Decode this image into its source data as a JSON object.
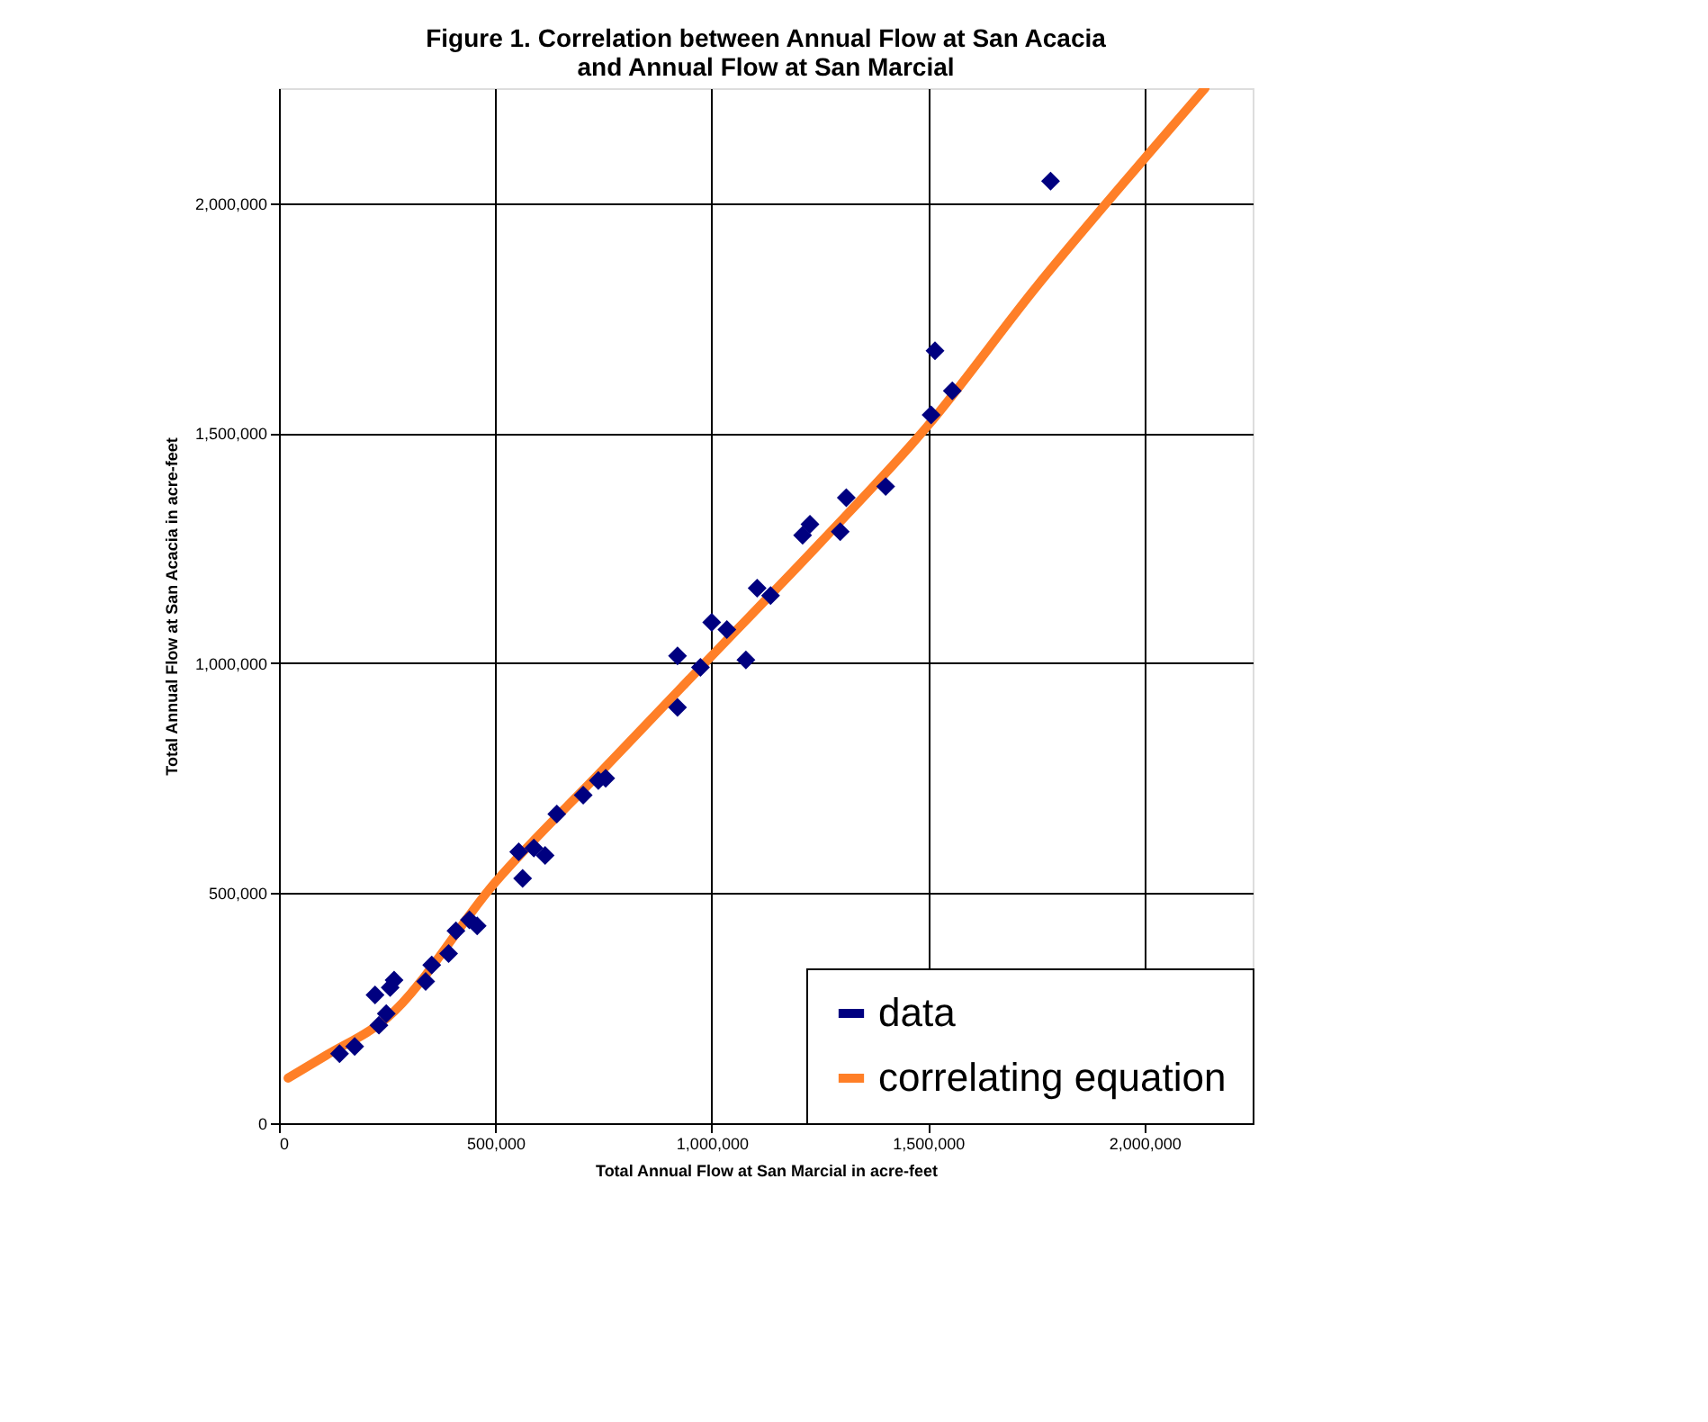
{
  "chart_data": {
    "type": "scatter",
    "title": "Figure 1.  Correlation between Annual Flow at San Acacia\nand Annual Flow at San Marcial",
    "xlabel": "Total Annual Flow at San Marcial in acre-feet",
    "ylabel": "Total Annual Flow at San Acacia in acre-feet",
    "xlim": [
      0,
      2250000
    ],
    "ylim": [
      0,
      2250000
    ],
    "xticks": [
      {
        "value": 0,
        "label": "0"
      },
      {
        "value": 500000,
        "label": "500,000"
      },
      {
        "value": 1000000,
        "label": "1,000,000"
      },
      {
        "value": 1500000,
        "label": "1,500,000"
      },
      {
        "value": 2000000,
        "label": "2,000,000"
      }
    ],
    "yticks": [
      {
        "value": 0,
        "label": "0"
      },
      {
        "value": 500000,
        "label": "500,000"
      },
      {
        "value": 1000000,
        "label": "1,000,000"
      },
      {
        "value": 1500000,
        "label": "1,500,000"
      },
      {
        "value": 2000000,
        "label": "2,000,000"
      }
    ],
    "grid": true,
    "legend": "bottom right",
    "series": [
      {
        "name": "data",
        "marker": "diamond",
        "color": "#000080",
        "x": [
          140000,
          175000,
          231000,
          222000,
          257000,
          248000,
          266000,
          339000,
          353000,
          392000,
          409000,
          440000,
          458000,
          563000,
          554000,
          589000,
          615000,
          642000,
          703000,
          755000,
          738000,
          921000,
          921000,
          974000,
          1000000,
          1035000,
          1079000,
          1105000,
          1136000,
          1210000,
          1227000,
          1297000,
          1311000,
          1402000,
          1507000,
          1516000,
          1556000,
          1783000
        ],
        "values": [
          151000,
          167000,
          213000,
          279000,
          295000,
          238000,
          311000,
          308000,
          344000,
          369000,
          418000,
          442000,
          429000,
          532000,
          590000,
          598000,
          582000,
          672000,
          713000,
          750000,
          745000,
          904000,
          1016000,
          991000,
          1089000,
          1073000,
          1007000,
          1163000,
          1147000,
          1278000,
          1302000,
          1286000,
          1360000,
          1384000,
          1540000,
          1679000,
          1592000,
          2048000
        ]
      },
      {
        "name": "correlating equation",
        "type": "line",
        "marker": "none",
        "line_style": "solid",
        "color": "#ff7f27",
        "x": [
          21000,
          108000,
          250000,
          500000,
          750000,
          1000000,
          1250000,
          1500000,
          1750000,
          2000000,
          2140000
        ],
        "values": [
          98000,
          147000,
          229000,
          524000,
          770000,
          1016000,
          1261000,
          1517000,
          1818000,
          2097000,
          2250000
        ]
      }
    ]
  }
}
